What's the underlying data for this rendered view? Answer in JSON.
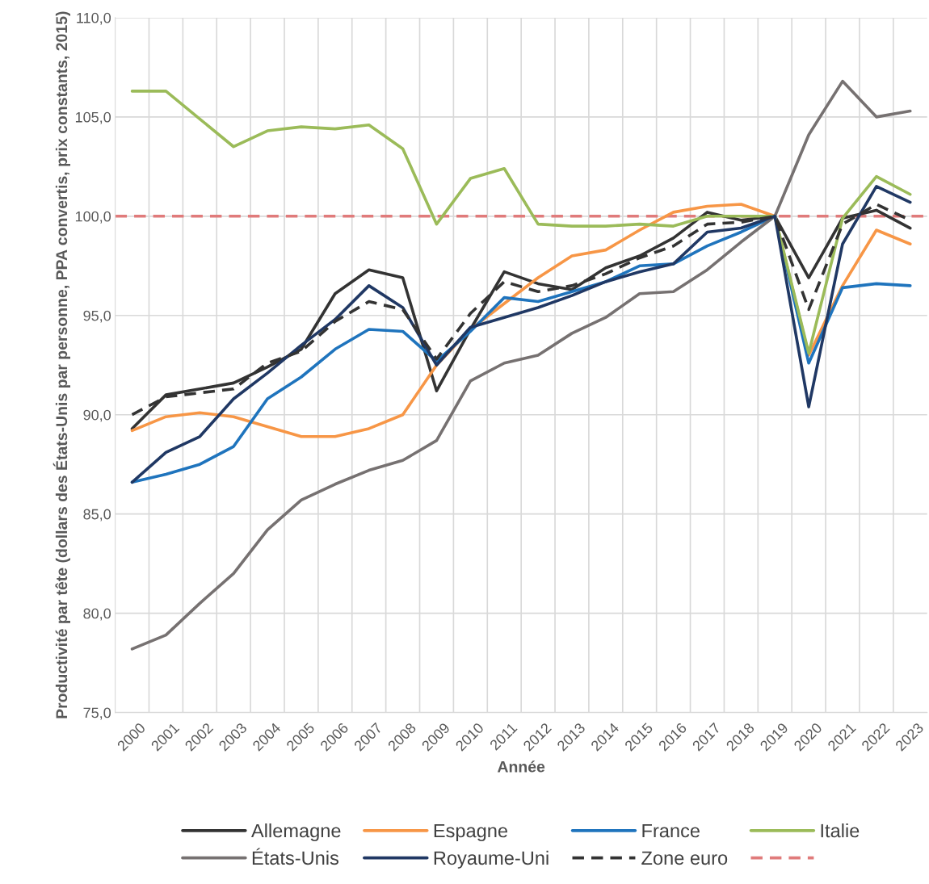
{
  "chart_data": {
    "type": "line",
    "xlabel": "Année",
    "ylabel": "Productivité par tête (dollars des États-Unis par personne, PPA convertis, prix constants, 2015)",
    "categories": [
      "2000",
      "2001",
      "2002",
      "2003",
      "2004",
      "2005",
      "2006",
      "2007",
      "2008",
      "2009",
      "2010",
      "2011",
      "2012",
      "2013",
      "2014",
      "2015",
      "2016",
      "2017",
      "2018",
      "2019",
      "2020",
      "2021",
      "2022",
      "2023"
    ],
    "series": [
      {
        "name": "Allemagne",
        "color": "#333333",
        "values": [
          89.3,
          91.0,
          91.3,
          91.6,
          92.4,
          93.3,
          96.1,
          97.3,
          96.9,
          91.2,
          94.3,
          97.2,
          96.6,
          96.3,
          97.4,
          98.0,
          98.9,
          100.2,
          99.8,
          100.0,
          96.9,
          99.9,
          100.3,
          99.4
        ]
      },
      {
        "name": "Espagne",
        "color": "#f79646",
        "values": [
          89.2,
          89.9,
          90.1,
          89.9,
          89.4,
          88.9,
          88.9,
          89.3,
          90.0,
          92.5,
          94.3,
          95.6,
          96.9,
          98.0,
          98.3,
          99.3,
          100.2,
          100.5,
          100.6,
          100.0,
          93.0,
          96.5,
          99.3,
          98.6
        ]
      },
      {
        "name": "France",
        "color": "#1f74bd",
        "values": [
          86.6,
          87.0,
          87.5,
          88.4,
          90.8,
          91.9,
          93.3,
          94.3,
          94.2,
          92.7,
          94.2,
          95.9,
          95.7,
          96.2,
          96.7,
          97.5,
          97.6,
          98.5,
          99.2,
          100.0,
          92.6,
          96.4,
          96.6,
          96.5
        ]
      },
      {
        "name": "Italie",
        "color": "#9bbb59",
        "values": [
          106.3,
          106.3,
          104.9,
          103.5,
          104.3,
          104.5,
          104.4,
          104.6,
          103.4,
          99.6,
          101.9,
          102.4,
          99.6,
          99.5,
          99.5,
          99.6,
          99.5,
          100.0,
          100.0,
          100.0,
          93.1,
          99.9,
          102.0,
          101.1
        ]
      },
      {
        "name": "États-Unis",
        "color": "#767171",
        "values": [
          78.2,
          78.9,
          80.5,
          82.0,
          84.2,
          85.7,
          86.5,
          87.2,
          87.7,
          88.7,
          91.7,
          92.6,
          93.0,
          94.1,
          94.9,
          96.1,
          96.2,
          97.3,
          98.7,
          100.0,
          104.1,
          106.8,
          105.0,
          105.3
        ]
      },
      {
        "name": "Royaume-Uni",
        "color": "#203864",
        "values": [
          86.6,
          88.1,
          88.9,
          90.8,
          92.1,
          93.5,
          94.8,
          96.5,
          95.4,
          92.5,
          94.4,
          94.9,
          95.4,
          96.0,
          96.7,
          97.2,
          97.6,
          99.2,
          99.4,
          100.0,
          90.4,
          98.6,
          101.5,
          100.7
        ]
      },
      {
        "name": "Zone euro",
        "color": "#333333",
        "line_style": "dashed",
        "values": [
          90.0,
          90.9,
          91.1,
          91.3,
          92.6,
          93.2,
          94.7,
          95.7,
          95.3,
          92.8,
          95.1,
          96.7,
          96.2,
          96.5,
          97.1,
          97.9,
          98.5,
          99.6,
          99.7,
          100.0,
          95.3,
          99.6,
          100.6,
          99.8
        ]
      }
    ],
    "ref_lines": [
      {
        "axis": "y",
        "value": 100,
        "color": "#e07b7b",
        "line_style": "dashed"
      }
    ],
    "ylim": [
      75,
      110
    ],
    "yticks": [
      {
        "value": 75,
        "label": "75,0"
      },
      {
        "value": 80,
        "label": "80,0"
      },
      {
        "value": 85,
        "label": "85,0"
      },
      {
        "value": 90,
        "label": "90,0"
      },
      {
        "value": 95,
        "label": "95,0"
      },
      {
        "value": 100,
        "label": "100,0"
      },
      {
        "value": 105,
        "label": "105,0"
      },
      {
        "value": 110,
        "label": "110,0"
      }
    ],
    "grid": true,
    "legend": "bottom",
    "marker": "none"
  }
}
